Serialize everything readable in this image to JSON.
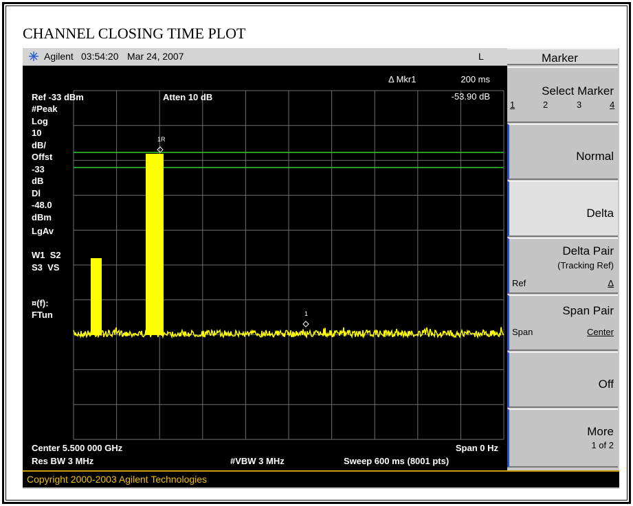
{
  "title": "CHANNEL CLOSING TIME PLOT",
  "status_bar": {
    "instrument": "Agilent",
    "time": "03:54:20",
    "date": "Mar 24, 2007",
    "mode": "L"
  },
  "display": {
    "ref": "Ref -33 dBm",
    "atten": "Atten 10 dB",
    "left_annotations": [
      "#Peak",
      "Log",
      "10",
      "dB/",
      "Offst",
      "-33",
      "dB",
      "Dl",
      "-48.0",
      "dBm",
      "LgAv",
      "W1  S2",
      "S3  VS",
      "¤(f):",
      "FTun"
    ],
    "marker_readout": {
      "label": "Δ Mkr1",
      "time": "200 ms",
      "level": "-53.90 dB"
    },
    "markers": [
      "1R",
      "1"
    ],
    "footer": {
      "center": "Center 5.500 000 GHz",
      "span": "Span 0 Hz",
      "res_bw": "Res BW 3 MHz",
      "vbw": "#VBW 3 MHz",
      "sweep": "Sweep 600 ms (8001 pts)"
    }
  },
  "softkeys": {
    "menu": "Marker",
    "keys": [
      {
        "label": "Select Marker",
        "options": [
          "1",
          "2",
          "3",
          "4"
        ]
      },
      {
        "label": "Normal"
      },
      {
        "label": "Delta"
      },
      {
        "label": "Delta Pair",
        "sublabel": "(Tracking Ref)",
        "options": [
          "Ref",
          "Δ"
        ]
      },
      {
        "label": "Span Pair",
        "options": [
          "Span",
          "Center"
        ]
      },
      {
        "label": "Off"
      },
      {
        "label": "More",
        "sublabel": "1 of 2"
      }
    ]
  },
  "copyright": "Copyright 2000-2003 Agilent Technologies"
}
